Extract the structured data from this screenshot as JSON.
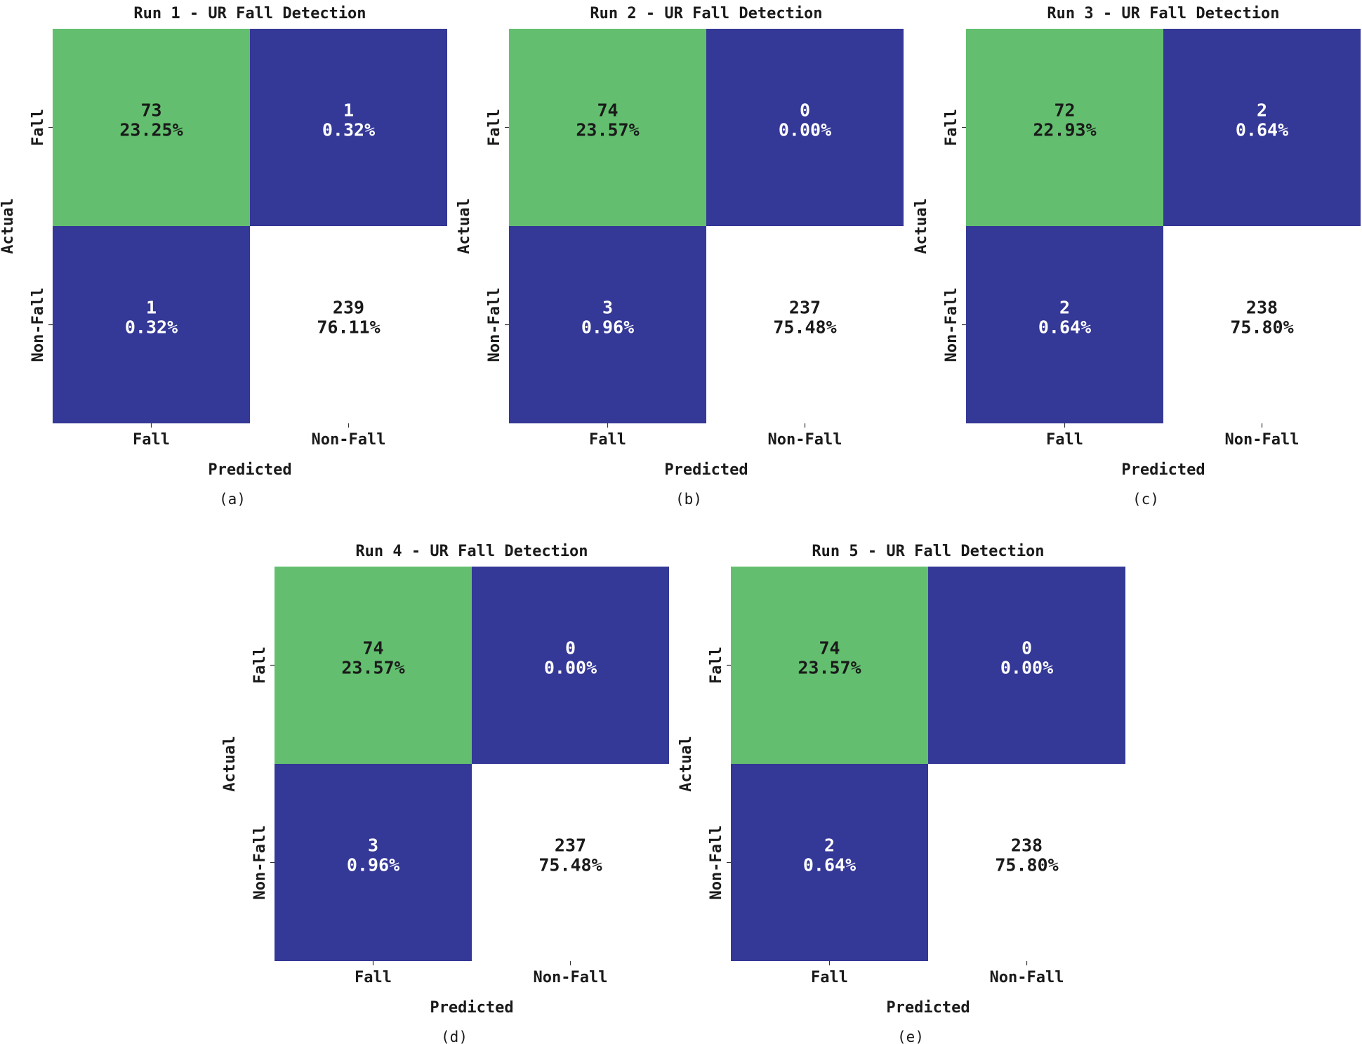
{
  "colors": {
    "diag_fall": "#63bf6f",
    "off_diag": "#343896",
    "diag_nonfall": "#ffffff",
    "text_dark": "#1a1a1a",
    "text_light": "#ffffff"
  },
  "chart_data": [
    {
      "type": "heatmap",
      "title": "Run 1 - UR Fall Detection",
      "caption": "(a)",
      "xlabel": "Predicted",
      "ylabel": "Actual",
      "x_categories": [
        "Fall",
        "Non-Fall"
      ],
      "y_categories": [
        "Fall",
        "Non-Fall"
      ],
      "matrix": [
        [
          73,
          1
        ],
        [
          1,
          239
        ]
      ],
      "percentages": [
        [
          "23.25%",
          "0.32%"
        ],
        [
          "0.32%",
          "76.11%"
        ]
      ],
      "counts_text": [
        [
          "73",
          "1"
        ],
        [
          "1",
          "239"
        ]
      ]
    },
    {
      "type": "heatmap",
      "title": "Run 2 - UR Fall Detection",
      "caption": "(b)",
      "xlabel": "Predicted",
      "ylabel": "Actual",
      "x_categories": [
        "Fall",
        "Non-Fall"
      ],
      "y_categories": [
        "Fall",
        "Non-Fall"
      ],
      "matrix": [
        [
          74,
          0
        ],
        [
          3,
          237
        ]
      ],
      "percentages": [
        [
          "23.57%",
          "0.00%"
        ],
        [
          "0.96%",
          "75.48%"
        ]
      ],
      "counts_text": [
        [
          "74",
          "0"
        ],
        [
          "3",
          "237"
        ]
      ]
    },
    {
      "type": "heatmap",
      "title": "Run 3 - UR Fall Detection",
      "caption": "(c)",
      "xlabel": "Predicted",
      "ylabel": "Actual",
      "x_categories": [
        "Fall",
        "Non-Fall"
      ],
      "y_categories": [
        "Fall",
        "Non-Fall"
      ],
      "matrix": [
        [
          72,
          2
        ],
        [
          2,
          238
        ]
      ],
      "percentages": [
        [
          "22.93%",
          "0.64%"
        ],
        [
          "0.64%",
          "75.80%"
        ]
      ],
      "counts_text": [
        [
          "72",
          "2"
        ],
        [
          "2",
          "238"
        ]
      ]
    },
    {
      "type": "heatmap",
      "title": "Run 4 - UR Fall Detection",
      "caption": "(d)",
      "xlabel": "Predicted",
      "ylabel": "Actual",
      "x_categories": [
        "Fall",
        "Non-Fall"
      ],
      "y_categories": [
        "Fall",
        "Non-Fall"
      ],
      "matrix": [
        [
          74,
          0
        ],
        [
          3,
          237
        ]
      ],
      "percentages": [
        [
          "23.57%",
          "0.00%"
        ],
        [
          "0.96%",
          "75.48%"
        ]
      ],
      "counts_text": [
        [
          "74",
          "0"
        ],
        [
          "3",
          "237"
        ]
      ]
    },
    {
      "type": "heatmap",
      "title": "Run 5 - UR Fall Detection",
      "caption": "(e)",
      "xlabel": "Predicted",
      "ylabel": "Actual",
      "x_categories": [
        "Fall",
        "Non-Fall"
      ],
      "y_categories": [
        "Fall",
        "Non-Fall"
      ],
      "matrix": [
        [
          74,
          0
        ],
        [
          2,
          238
        ]
      ],
      "percentages": [
        [
          "23.57%",
          "0.00%"
        ],
        [
          "0.64%",
          "75.80%"
        ]
      ],
      "counts_text": [
        [
          "74",
          "0"
        ],
        [
          "2",
          "238"
        ]
      ]
    }
  ]
}
